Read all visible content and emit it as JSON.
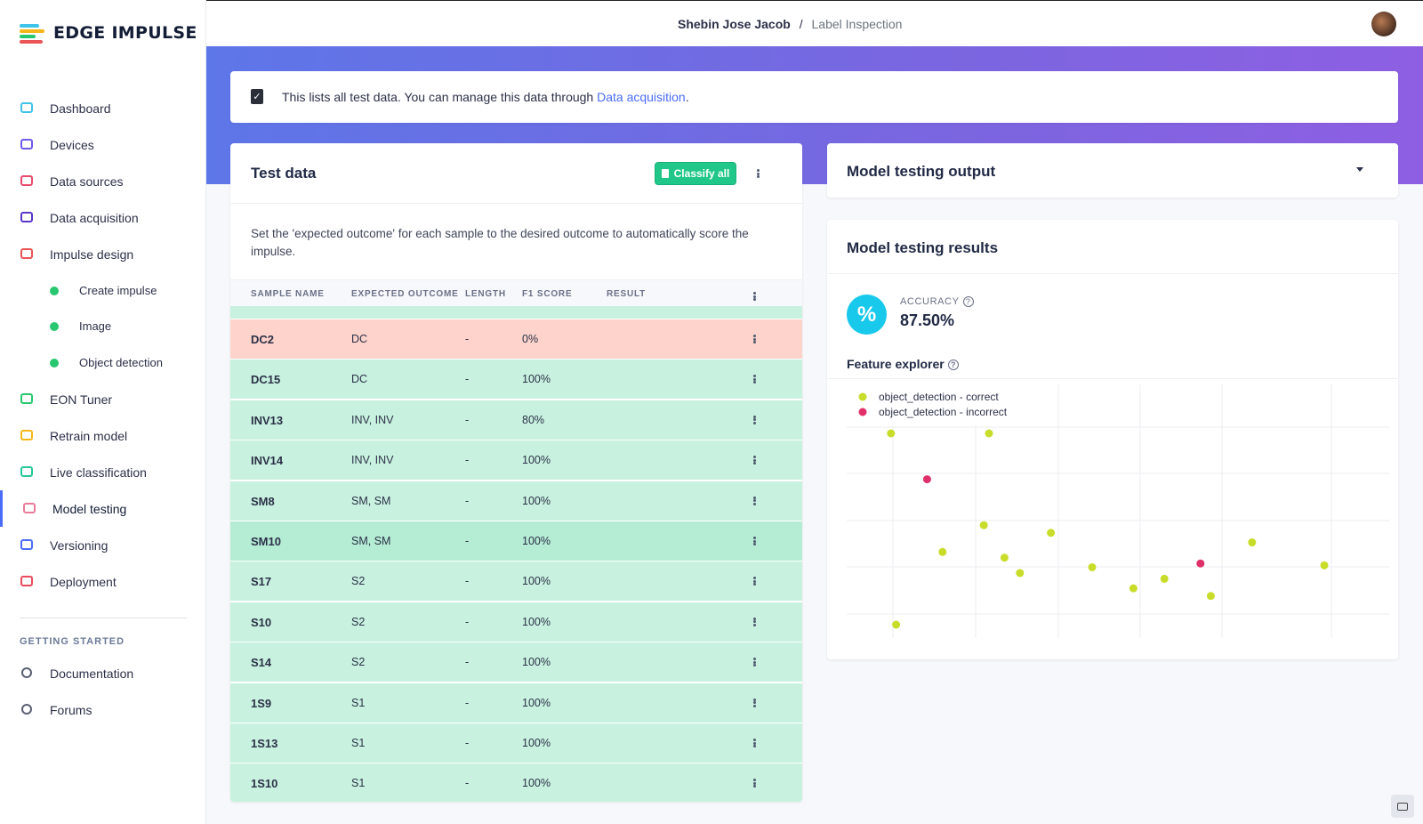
{
  "brand": {
    "name": "EDGE IMPULSE"
  },
  "breadcrumb": {
    "user": "Shebin Jose Jacob",
    "separator": "/",
    "page": "Label Inspection"
  },
  "sidebar": {
    "items": [
      {
        "label": "Dashboard",
        "icon": "monitor-icon",
        "color": "#3fc3e8"
      },
      {
        "label": "Devices",
        "icon": "chip-icon",
        "color": "#6b5ce7"
      },
      {
        "label": "Data sources",
        "icon": "wand-icon",
        "color": "#ea4a6b"
      },
      {
        "label": "Data acquisition",
        "icon": "database-icon",
        "color": "#5a36c9"
      },
      {
        "label": "Impulse design",
        "icon": "pulse-icon",
        "color": "#ea5455"
      },
      {
        "label": "Create impulse",
        "icon": "dot-icon"
      },
      {
        "label": "Image",
        "icon": "dot-icon"
      },
      {
        "label": "Object detection",
        "icon": "dot-icon"
      },
      {
        "label": "EON Tuner",
        "icon": "gauge-icon",
        "color": "#28c76f"
      },
      {
        "label": "Retrain model",
        "icon": "shuffle-icon",
        "color": "#f5b718"
      },
      {
        "label": "Live classification",
        "icon": "radar-icon",
        "color": "#28c79a"
      },
      {
        "label": "Model testing",
        "icon": "clipboard-icon",
        "color": "#ea7b9a"
      },
      {
        "label": "Versioning",
        "icon": "branch-icon",
        "color": "#4a6cf7"
      },
      {
        "label": "Deployment",
        "icon": "cube-icon",
        "color": "#ea4a5b"
      }
    ],
    "section_heading": "GETTING STARTED",
    "getting_started": [
      {
        "label": "Documentation",
        "icon": "rocket-icon"
      },
      {
        "label": "Forums",
        "icon": "chat-icon"
      }
    ]
  },
  "info": {
    "text": "This lists all test data. You can manage this data through ",
    "link": "Data acquisition",
    "suffix": "."
  },
  "test_data": {
    "title": "Test data",
    "classify_label": "Classify all",
    "description": "Set the 'expected outcome' for each sample to the desired outcome to automatically score the impulse.",
    "columns": [
      "SAMPLE NAME",
      "EXPECTED OUTCOME",
      "LENGTH",
      "F1 SCORE",
      "RESULT"
    ],
    "rows": [
      {
        "name": "DC2",
        "expected": "DC",
        "length": "-",
        "f1": "0%",
        "status": "bad"
      },
      {
        "name": "DC15",
        "expected": "DC",
        "length": "-",
        "f1": "100%",
        "status": "ok"
      },
      {
        "name": "INV13",
        "expected": "INV, INV",
        "length": "-",
        "f1": "80%",
        "status": "ok"
      },
      {
        "name": "INV14",
        "expected": "INV, INV",
        "length": "-",
        "f1": "100%",
        "status": "ok"
      },
      {
        "name": "SM8",
        "expected": "SM, SM",
        "length": "-",
        "f1": "100%",
        "status": "ok"
      },
      {
        "name": "SM10",
        "expected": "SM, SM",
        "length": "-",
        "f1": "100%",
        "status": "alt"
      },
      {
        "name": "S17",
        "expected": "S2",
        "length": "-",
        "f1": "100%",
        "status": "ok"
      },
      {
        "name": "S10",
        "expected": "S2",
        "length": "-",
        "f1": "100%",
        "status": "ok"
      },
      {
        "name": "S14",
        "expected": "S2",
        "length": "-",
        "f1": "100%",
        "status": "ok"
      },
      {
        "name": "1S9",
        "expected": "S1",
        "length": "-",
        "f1": "100%",
        "status": "ok"
      },
      {
        "name": "1S13",
        "expected": "S1",
        "length": "-",
        "f1": "100%",
        "status": "ok"
      },
      {
        "name": "1S10",
        "expected": "S1",
        "length": "-",
        "f1": "100%",
        "status": "ok"
      }
    ]
  },
  "output_panel": {
    "title": "Model testing output"
  },
  "results": {
    "title": "Model testing results",
    "accuracy_label": "ACCURACY",
    "accuracy_value": "87.50%",
    "badge": "%",
    "feature_explorer_title": "Feature explorer"
  },
  "chart_data": {
    "type": "scatter",
    "title": "Feature explorer",
    "xlabel": "",
    "ylabel": "",
    "xlim": [
      0,
      100
    ],
    "ylim": [
      0,
      100
    ],
    "grid": true,
    "legend": "top-left",
    "series": [
      {
        "name": "object_detection - correct",
        "color": "#c8dc2a",
        "points": [
          [
            6,
            100
          ],
          [
            25,
            100
          ],
          [
            24,
            52
          ],
          [
            16,
            38
          ],
          [
            28,
            35
          ],
          [
            37,
            48
          ],
          [
            31,
            27
          ],
          [
            45,
            30
          ],
          [
            53,
            19
          ],
          [
            59,
            24
          ],
          [
            68,
            15
          ],
          [
            76,
            43
          ],
          [
            90,
            31
          ],
          [
            7,
            0
          ]
        ]
      },
      {
        "name": "object_detection - incorrect",
        "color": "#e0306a",
        "points": [
          [
            13,
            76
          ],
          [
            66,
            32
          ]
        ]
      }
    ]
  },
  "colors": {
    "accent": "#4a6cf7",
    "success": "#20c788",
    "ok_row": "#c8f2df",
    "bad_row": "#fdd3cb"
  }
}
